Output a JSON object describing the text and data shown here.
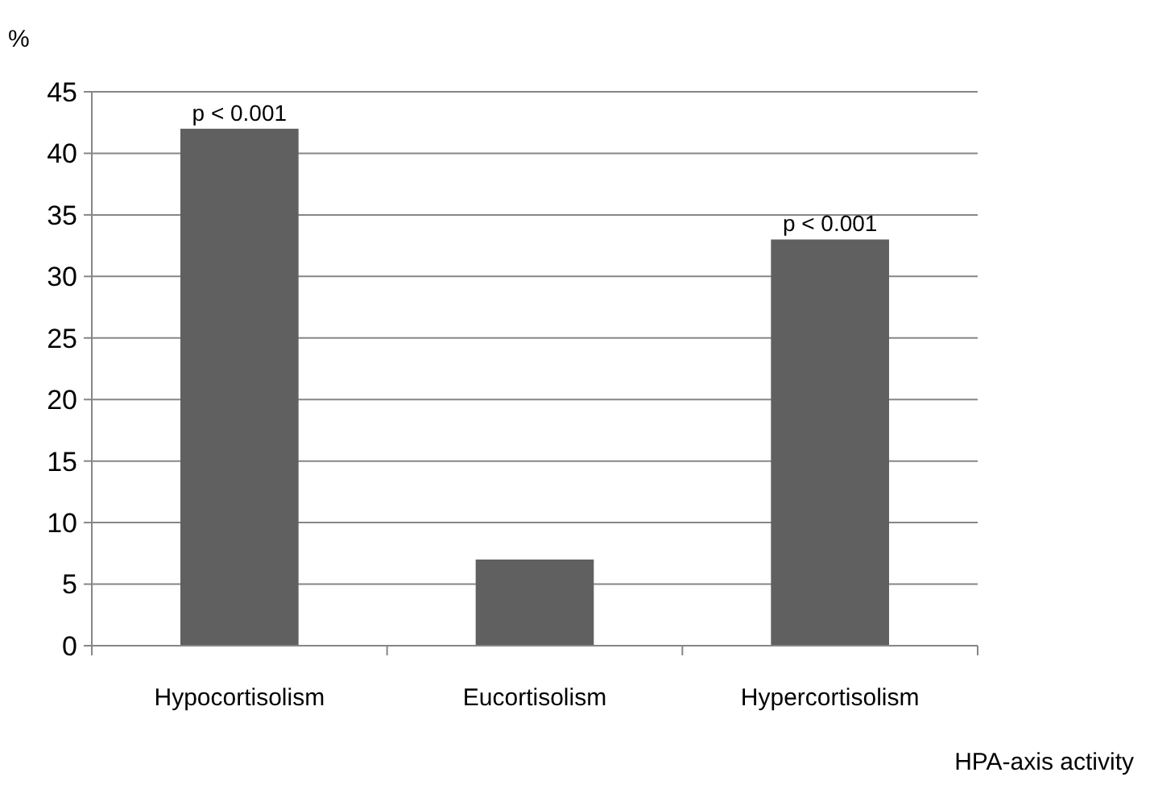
{
  "chart_data": {
    "type": "bar",
    "ylabel": "%",
    "xlabel": "HPA-axis activity",
    "categories": [
      "Hypocortisolism",
      "Eucortisolism",
      "Hypercortisolism"
    ],
    "values": [
      42,
      7,
      33
    ],
    "color": "#606060",
    "ylim": [
      0,
      45
    ],
    "yticks": [
      0,
      5,
      10,
      15,
      20,
      25,
      30,
      35,
      40,
      45
    ],
    "grid": "y",
    "annotations": [
      {
        "text": "p < 0.001",
        "x": "Hypocortisolism",
        "y": 42
      },
      {
        "text": "p < 0.001",
        "x": "Hypercortisolism",
        "y": 33
      }
    ]
  }
}
